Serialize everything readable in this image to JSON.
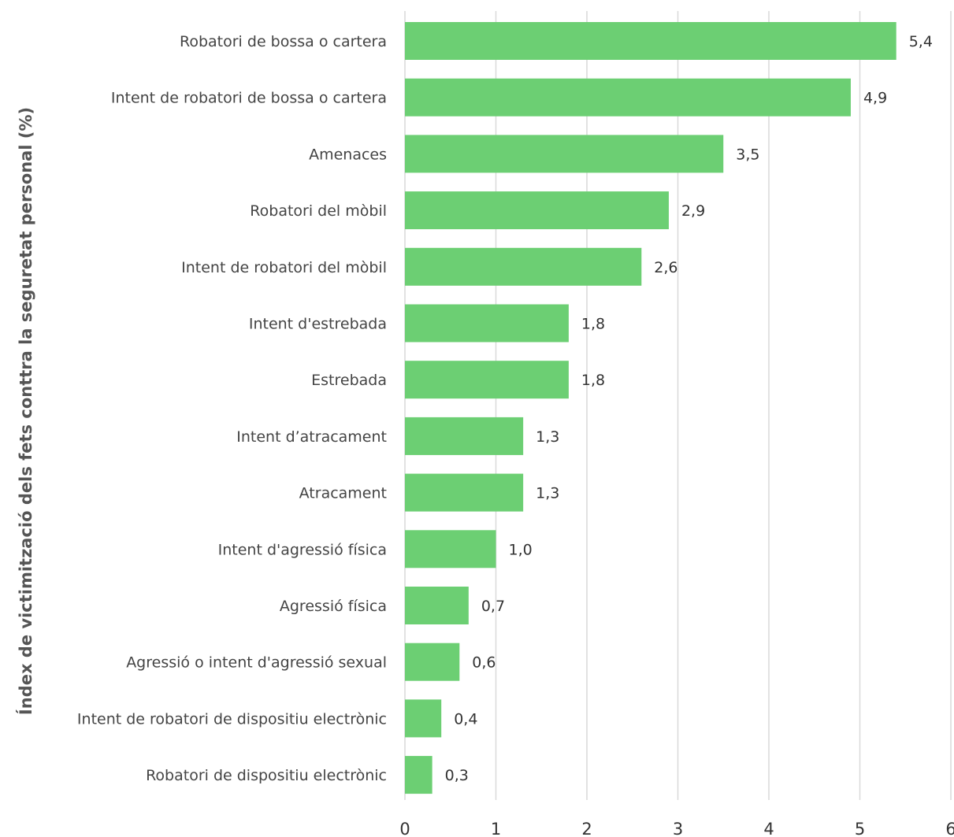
{
  "chart_data": {
    "type": "bar",
    "orientation": "horizontal",
    "ylabel": "Índex de victimització dels fets conttra la seguretat personal (%)",
    "xlabel": "",
    "categories": [
      "Robatori de bossa o cartera",
      "Intent de robatori de bossa o cartera",
      "Amenaces",
      "Robatori del mòbil",
      "Intent de robatori del mòbil",
      "Intent d'estrebada",
      "Estrebada",
      "Intent d’atracament",
      "Atracament",
      "Intent d'agressió física",
      "Agressió física",
      "Agressió o intent d'agressió sexual",
      "Intent de robatori de dispositiu electrònic",
      "Robatori de dispositiu electrònic"
    ],
    "values": [
      5.4,
      4.9,
      3.5,
      2.9,
      2.6,
      1.8,
      1.8,
      1.3,
      1.3,
      1.0,
      0.7,
      0.6,
      0.4,
      0.3
    ],
    "value_labels": [
      "5,4",
      "4,9",
      "3,5",
      "2,9",
      "2,6",
      "1,8",
      "1,8",
      "1,3",
      "1,3",
      "1,0",
      "0,7",
      "0,6",
      "0,4",
      "0,3"
    ],
    "xlim": [
      0,
      6
    ],
    "xticks": [
      0,
      1,
      2,
      3,
      4,
      5,
      6
    ],
    "xtick_labels": [
      "0",
      "1",
      "2",
      "3",
      "4",
      "5",
      "6"
    ],
    "grid": true,
    "legend": "none",
    "bar_color": "#6ccf73",
    "grid_color": "#d9d9d9"
  }
}
